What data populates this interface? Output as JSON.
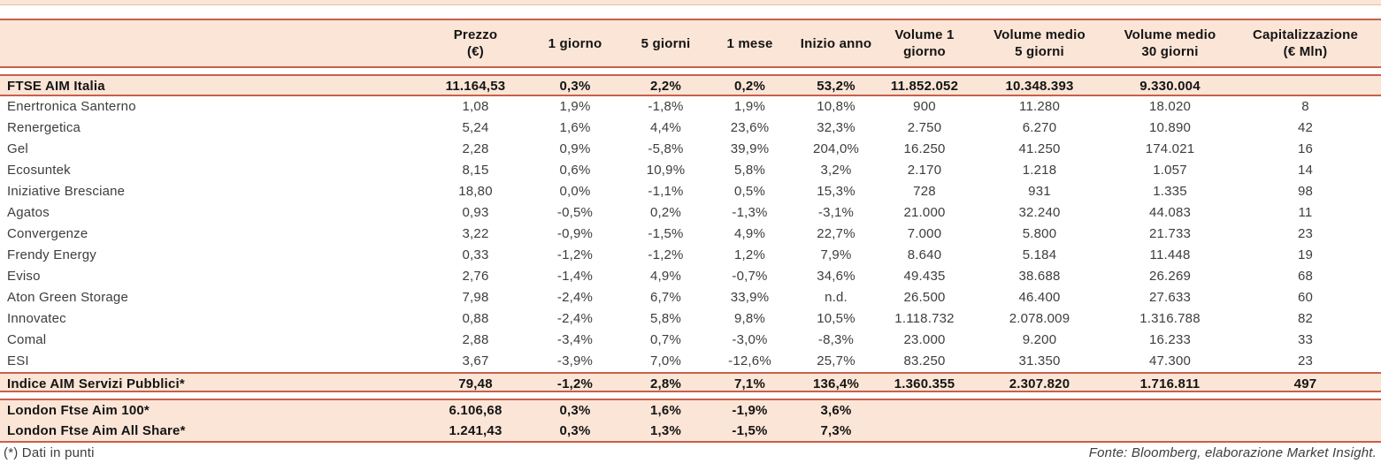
{
  "chart_data": {
    "type": "table",
    "column_headers": [
      [
        "Prezzo",
        "(€)"
      ],
      [
        "1 giorno"
      ],
      [
        "5 giorni"
      ],
      [
        "1 mese"
      ],
      [
        "Inizio anno"
      ],
      [
        "Volume 1",
        "giorno"
      ],
      [
        "Volume medio",
        "5 giorni"
      ],
      [
        "Volume medio",
        "30 giorni"
      ],
      [
        "Capitalizzazione",
        "(€ Mln)"
      ]
    ],
    "index_row": {
      "name": "FTSE AIM Italia",
      "values": [
        "11.164,53",
        "0,3%",
        "2,2%",
        "0,2%",
        "53,2%",
        "11.852.052",
        "10.348.393",
        "9.330.004",
        ""
      ]
    },
    "company_rows": [
      {
        "name": "Enertronica Santerno",
        "values": [
          "1,08",
          "1,9%",
          "-1,8%",
          "1,9%",
          "10,8%",
          "900",
          "11.280",
          "18.020",
          "8"
        ]
      },
      {
        "name": "Renergetica",
        "values": [
          "5,24",
          "1,6%",
          "4,4%",
          "23,6%",
          "32,3%",
          "2.750",
          "6.270",
          "10.890",
          "42"
        ]
      },
      {
        "name": "Gel",
        "values": [
          "2,28",
          "0,9%",
          "-5,8%",
          "39,9%",
          "204,0%",
          "16.250",
          "41.250",
          "174.021",
          "16"
        ]
      },
      {
        "name": "Ecosuntek",
        "values": [
          "8,15",
          "0,6%",
          "10,9%",
          "5,8%",
          "3,2%",
          "2.170",
          "1.218",
          "1.057",
          "14"
        ]
      },
      {
        "name": "Iniziative Bresciane",
        "values": [
          "18,80",
          "0,0%",
          "-1,1%",
          "0,5%",
          "15,3%",
          "728",
          "931",
          "1.335",
          "98"
        ]
      },
      {
        "name": "Agatos",
        "values": [
          "0,93",
          "-0,5%",
          "0,2%",
          "-1,3%",
          "-3,1%",
          "21.000",
          "32.240",
          "44.083",
          "11"
        ]
      },
      {
        "name": "Convergenze",
        "values": [
          "3,22",
          "-0,9%",
          "-1,5%",
          "4,9%",
          "22,7%",
          "7.000",
          "5.800",
          "21.733",
          "23"
        ]
      },
      {
        "name": "Frendy Energy",
        "values": [
          "0,33",
          "-1,2%",
          "-1,2%",
          "1,2%",
          "7,9%",
          "8.640",
          "5.184",
          "11.448",
          "19"
        ]
      },
      {
        "name": "Eviso",
        "values": [
          "2,76",
          "-1,4%",
          "4,9%",
          "-0,7%",
          "34,6%",
          "49.435",
          "38.688",
          "26.269",
          "68"
        ]
      },
      {
        "name": "Aton Green Storage",
        "values": [
          "7,98",
          "-2,4%",
          "6,7%",
          "33,9%",
          "n.d.",
          "26.500",
          "46.400",
          "27.633",
          "60"
        ]
      },
      {
        "name": "Innovatec",
        "values": [
          "0,88",
          "-2,4%",
          "5,8%",
          "9,8%",
          "10,5%",
          "1.118.732",
          "2.078.009",
          "1.316.788",
          "82"
        ]
      },
      {
        "name": "Comal",
        "values": [
          "2,88",
          "-3,4%",
          "0,7%",
          "-3,0%",
          "-8,3%",
          "23.000",
          "9.200",
          "16.233",
          "33"
        ]
      },
      {
        "name": "ESI",
        "values": [
          "3,67",
          "-3,9%",
          "7,0%",
          "-12,6%",
          "25,7%",
          "83.250",
          "31.350",
          "47.300",
          "23"
        ]
      }
    ],
    "summary_row": {
      "name": "Indice AIM Servizi Pubblici*",
      "values": [
        "79,48",
        "-1,2%",
        "2,8%",
        "7,1%",
        "136,4%",
        "1.360.355",
        "2.307.820",
        "1.716.811",
        "497"
      ]
    },
    "london_rows": [
      {
        "name": "London Ftse Aim 100*",
        "values": [
          "6.106,68",
          "0,3%",
          "1,6%",
          "-1,9%",
          "3,6%",
          "",
          "",
          "",
          ""
        ]
      },
      {
        "name": "London Ftse Aim All Share*",
        "values": [
          "1.241,43",
          "0,3%",
          "1,3%",
          "-1,5%",
          "7,3%",
          "",
          "",
          "",
          ""
        ]
      }
    ]
  },
  "footer": {
    "note": "(*) Dati in punti",
    "source": "Fonte: Bloomberg, elaborazione Market Insight."
  },
  "colors": {
    "row_background": "#fbe5d6",
    "border": "#c8604a",
    "text": "#3d3d3d",
    "bold_text": "#141414"
  }
}
